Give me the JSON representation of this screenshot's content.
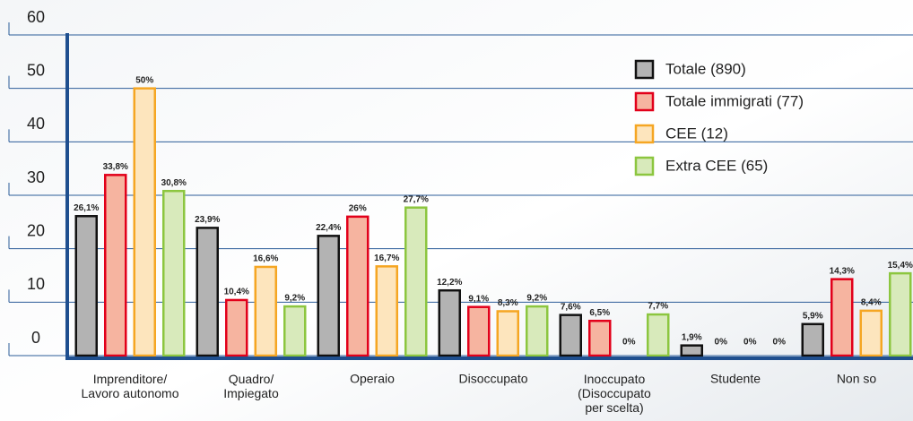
{
  "chart_data": {
    "type": "bar",
    "categories": [
      "Imprenditore/\nLavoro autonomo",
      "Quadro/\nImpiegato",
      "Operaio",
      "Disoccupato",
      "Inoccupato\n(Disoccupato\nper scelta)",
      "Studente",
      "Non so"
    ],
    "series": [
      {
        "name": "Totale (890)",
        "color": "#b3b3b3",
        "stroke": "#111111",
        "values": [
          26.1,
          23.9,
          22.4,
          12.2,
          7.6,
          1.9,
          5.9
        ],
        "value_labels": [
          "26,1%",
          "23,9%",
          "22,4%",
          "12,2%",
          "7,6%",
          "1,9%",
          "5,9%"
        ]
      },
      {
        "name": "Totale immigrati (77)",
        "color": "#f6b4a0",
        "stroke": "#e2001a",
        "values": [
          33.8,
          10.4,
          26,
          9.1,
          6.5,
          0,
          14.3
        ],
        "value_labels": [
          "33,8%",
          "10,4%",
          "26%",
          "9,1%",
          "6,5%",
          "0%",
          "14,3%"
        ]
      },
      {
        "name": "CEE (12)",
        "color": "#fde5bd",
        "stroke": "#f5a623",
        "values": [
          50,
          16.6,
          16.7,
          8.3,
          0,
          0,
          8.4
        ],
        "value_labels": [
          "50%",
          "16,6%",
          "16,7%",
          "8,3%",
          "0%",
          "0%",
          "8,4%"
        ]
      },
      {
        "name": "Extra CEE (65)",
        "color": "#d8eabb",
        "stroke": "#8cc63f",
        "values": [
          30.8,
          9.2,
          27.7,
          9.2,
          7.7,
          0,
          15.4
        ],
        "value_labels": [
          "30,8%",
          "9,2%",
          "27,7%",
          "9,2%",
          "7,7%",
          "0%",
          "15,4%"
        ]
      }
    ],
    "ylim": [
      0,
      60
    ],
    "yticks": [
      0,
      10,
      20,
      30,
      40,
      50,
      60
    ],
    "grid": true,
    "legend": "upper right"
  }
}
